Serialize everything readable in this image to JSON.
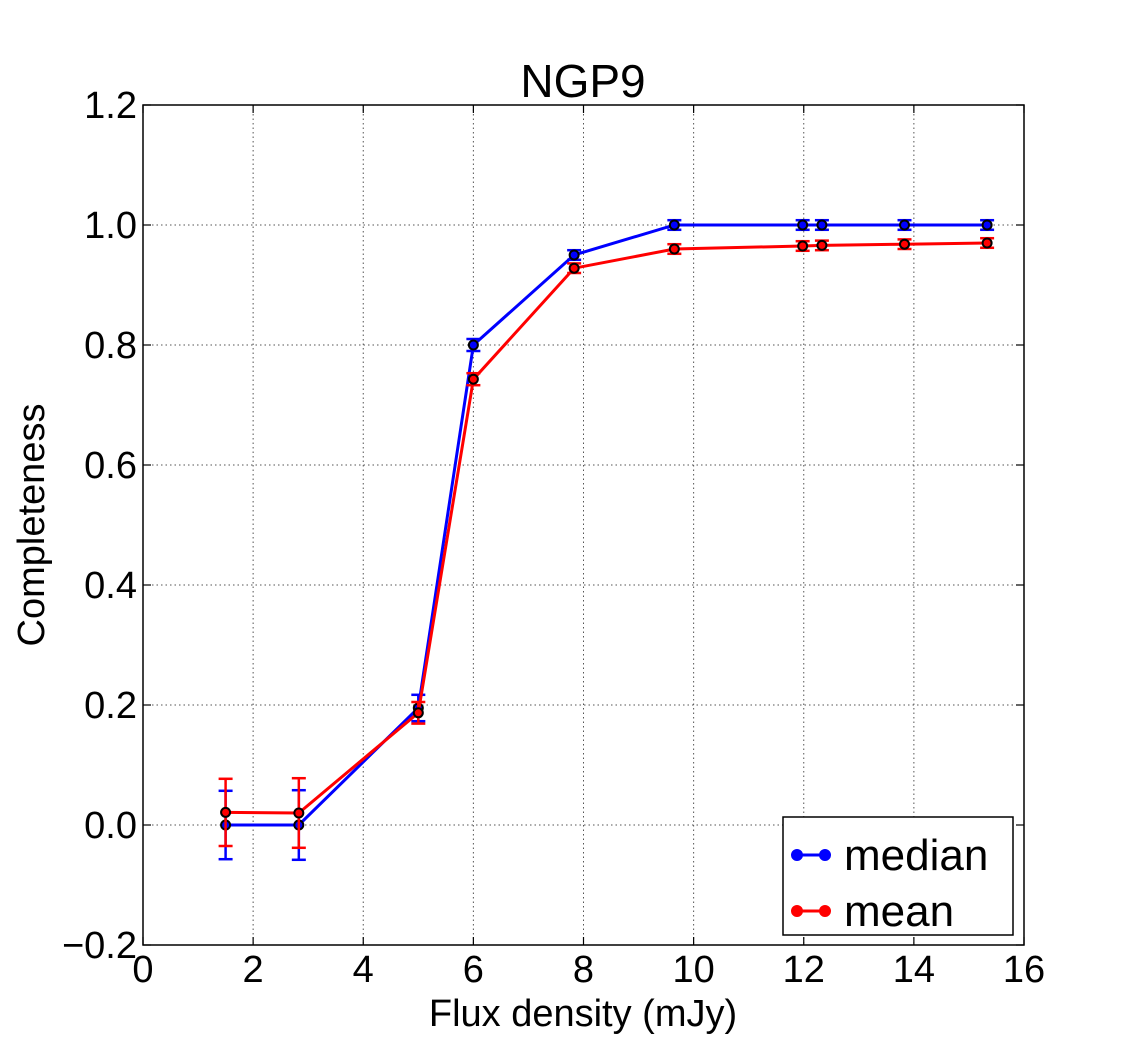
{
  "chart_data": {
    "type": "line",
    "title": "NGP9",
    "xlabel": "Flux density (mJy)",
    "ylabel": "Completeness",
    "xlim": [
      0,
      16
    ],
    "ylim": [
      -0.2,
      1.2
    ],
    "xticks": [
      0,
      2,
      4,
      6,
      8,
      10,
      12,
      14,
      16
    ],
    "yticks": [
      -0.2,
      0.0,
      0.2,
      0.4,
      0.6,
      0.8,
      1.0,
      1.2
    ],
    "xtick_labels": [
      "0",
      "2",
      "4",
      "6",
      "8",
      "10",
      "12",
      "14",
      "16"
    ],
    "ytick_labels": [
      "−0.2",
      "0.0",
      "0.2",
      "0.4",
      "0.6",
      "0.8",
      "1.0",
      "1.2"
    ],
    "grid": true,
    "legend_position": "lower-right",
    "x": [
      1.5,
      2.83,
      5.0,
      6.0,
      7.83,
      9.65,
      11.98,
      12.33,
      13.83,
      15.33
    ],
    "series": [
      {
        "name": "median",
        "color": "#0000ff",
        "values": [
          0.0,
          0.0,
          0.195,
          0.8,
          0.95,
          1.0,
          1.0,
          1.0,
          1.0,
          1.0
        ],
        "errors": [
          0.057,
          0.058,
          0.022,
          0.01,
          0.008,
          0.008,
          0.008,
          0.008,
          0.008,
          0.008
        ]
      },
      {
        "name": "mean",
        "color": "#ff0000",
        "values": [
          0.021,
          0.02,
          0.187,
          0.743,
          0.928,
          0.96,
          0.965,
          0.966,
          0.968,
          0.97
        ],
        "errors": [
          0.056,
          0.058,
          0.018,
          0.01,
          0.008,
          0.008,
          0.008,
          0.008,
          0.008,
          0.008
        ]
      }
    ]
  }
}
